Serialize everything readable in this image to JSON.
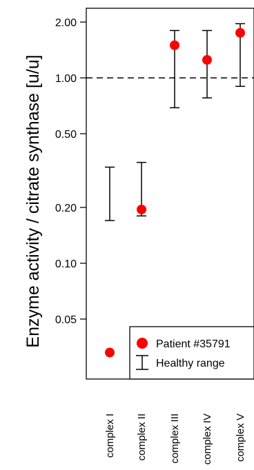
{
  "chart_data": {
    "type": "scatter",
    "ylabel": "Enzyme activity / citrate synthase [u/u]",
    "y_scale": "log",
    "ylim": [
      0.03,
      2.4
    ],
    "yticks": [
      {
        "value": 0.05,
        "label": "0.05"
      },
      {
        "value": 0.1,
        "label": "0.10"
      },
      {
        "value": 0.2,
        "label": "0.20"
      },
      {
        "value": 0.5,
        "label": "0.50"
      },
      {
        "value": 1.0,
        "label": "1.00"
      },
      {
        "value": 2.0,
        "label": "2.00"
      }
    ],
    "reference_line": {
      "value": 1.0,
      "style": "dashed"
    },
    "categories": [
      "complex I",
      "complex II",
      "complex III",
      "complex IV",
      "complex V"
    ],
    "series": [
      {
        "name": "Patient #35791",
        "marker": "filled-circle",
        "color": "#ff0000",
        "values": [
          0.033,
          0.195,
          1.5,
          1.25,
          1.75
        ]
      },
      {
        "name": "Healthy range",
        "marker": "range-bar",
        "color": "#000000",
        "ranges": [
          [
            0.17,
            0.33
          ],
          [
            0.18,
            0.35
          ],
          [
            0.69,
            1.8
          ],
          [
            0.78,
            1.8
          ],
          [
            0.9,
            1.96
          ]
        ]
      }
    ],
    "legend": {
      "position": "bottom-right",
      "entries": [
        "Patient #35791",
        "Healthy range"
      ]
    },
    "grid": false
  }
}
